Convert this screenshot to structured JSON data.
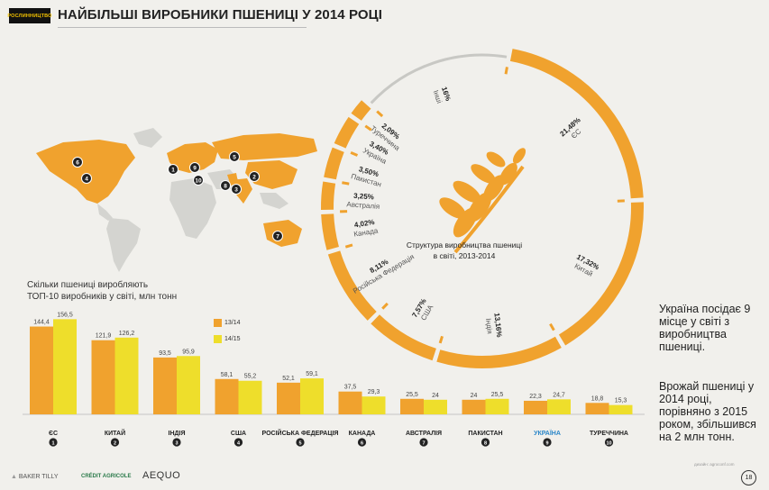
{
  "header": {
    "section_tag": "РОСЛИННИЦТВО",
    "title": "НАЙБІЛЬШІ ВИРОБНИКИ ПШЕНИЦІ У 2014 РОЦІ"
  },
  "colors": {
    "orange": "#f0a22e",
    "yellow": "#eede2b",
    "ukraine_label": "#2a86c8",
    "map_land": "#d4d4d0",
    "map_highlight": "#f0a22e",
    "ring": "#f0a22e",
    "ring_other": "#c8c8c4",
    "background": "#f1f0ec"
  },
  "chart_data": [
    {
      "type": "bar",
      "title": "Скільки пшениці виробляють ТОП-10 виробників у світі, млн тонн",
      "title_line1": "Скільки пшениці виробляють",
      "title_line2": "ТОП-10 виробників у світі, млн тонн",
      "categories": [
        "ЄС",
        "КИТАЙ",
        "ІНДІЯ",
        "США",
        "РОСІЙСЬКА ФЕДЕРАЦІЯ",
        "КАНАДА",
        "АВСТРАЛІЯ",
        "ПАКИСТАН",
        "УКРАЇНА",
        "ТУРЕЧЧИНА"
      ],
      "ranks": [
        "1",
        "2",
        "3",
        "4",
        "5",
        "6",
        "7",
        "8",
        "9",
        "10"
      ],
      "highlight_category": "УКРАЇНА",
      "series": [
        {
          "name": "13/14",
          "values": [
            144.4,
            121.9,
            93.5,
            58.1,
            52.1,
            37.5,
            25.5,
            24,
            22.3,
            18.8
          ],
          "labels": [
            "144,4",
            "121,9",
            "93,5",
            "58,1",
            "52,1",
            "37,5",
            "25,5",
            "24",
            "22,3",
            "18,8"
          ],
          "color": "#f0a22e"
        },
        {
          "name": "14/15",
          "values": [
            156.5,
            126.2,
            95.9,
            55.2,
            59.1,
            29.3,
            24,
            25.5,
            24.7,
            15.3
          ],
          "labels": [
            "156,5",
            "126,2",
            "95,9",
            "55,2",
            "59,1",
            "29,3",
            "24",
            "25,5",
            "24,7",
            "15,3"
          ],
          "color": "#eede2b"
        }
      ],
      "ylim": [
        0,
        160
      ]
    },
    {
      "type": "pie",
      "title": "Структура виробництва пшениці в світі, 2013-2014",
      "title_line1": "Структура виробництва пшениці",
      "title_line2": "в світі, 2013-2014",
      "slices": [
        {
          "name": "ЄС",
          "value": 21.48,
          "label": "21,48%"
        },
        {
          "name": "Китай",
          "value": 17.32,
          "label": "17,32%"
        },
        {
          "name": "Індія",
          "value": 13.16,
          "label": "13,16%"
        },
        {
          "name": "США",
          "value": 7.57,
          "label": "7,57%"
        },
        {
          "name": "Російська Федерація",
          "value": 8.11,
          "label": "8,11%"
        },
        {
          "name": "Канада",
          "value": 4.02,
          "label": "4,02%"
        },
        {
          "name": "Австралія",
          "value": 3.25,
          "label": "3,25%"
        },
        {
          "name": "Пакистан",
          "value": 3.5,
          "label": "3,50%"
        },
        {
          "name": "Україна",
          "value": 3.4,
          "label": "3,40%"
        },
        {
          "name": "Туреччина",
          "value": 2.09,
          "label": "2,09%"
        },
        {
          "name": "Інші",
          "value": 16,
          "label": "16%"
        }
      ]
    }
  ],
  "map": {
    "markers": [
      "1",
      "2",
      "3",
      "4",
      "5",
      "6",
      "7",
      "8",
      "9",
      "10"
    ]
  },
  "legend": {
    "s1": "13/14",
    "s2": "14/15"
  },
  "notes": {
    "note1": "Україна посідає 9 місце у світі з виробництва пшениці.",
    "note2": "Врожай пшениці у 2014 році, порівняно з 2015 роком, збільшився на 2 млн тонн."
  },
  "footer": {
    "logo1": "BAKER TILLY",
    "logo2": "CRÉDIT AGRICOLE",
    "logo3": "AEQUO",
    "credit": "дизайн: agroconf.com",
    "page": "18"
  }
}
